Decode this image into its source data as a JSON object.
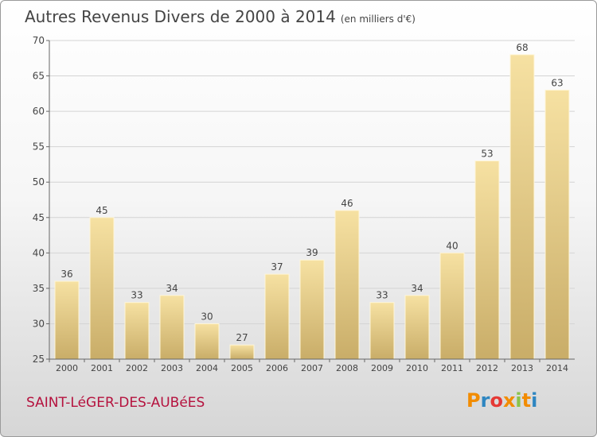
{
  "title": "Autres Revenus Divers de 2000 à 2014",
  "subtitle": "(en milliers d'€)",
  "location": "SAINT-LéGER-DES-AUBéES",
  "brand": {
    "text": "Proxiti",
    "letter_colors": [
      "#f28c00",
      "#2e86c1",
      "#e53935",
      "#f28c00",
      "#8bc34a",
      "#f28c00",
      "#2e86c1"
    ]
  },
  "chart_data": {
    "type": "bar",
    "categories": [
      "2000",
      "2001",
      "2002",
      "2003",
      "2004",
      "2005",
      "2006",
      "2007",
      "2008",
      "2009",
      "2010",
      "2011",
      "2012",
      "2013",
      "2014"
    ],
    "values": [
      36,
      45,
      33,
      34,
      30,
      27,
      37,
      39,
      46,
      33,
      34,
      40,
      53,
      68,
      63
    ],
    "ylim": [
      25,
      70
    ],
    "yticks": [
      25,
      30,
      35,
      40,
      45,
      50,
      55,
      60,
      65,
      70
    ],
    "grid": true,
    "bar_color": "#e9d28c"
  }
}
